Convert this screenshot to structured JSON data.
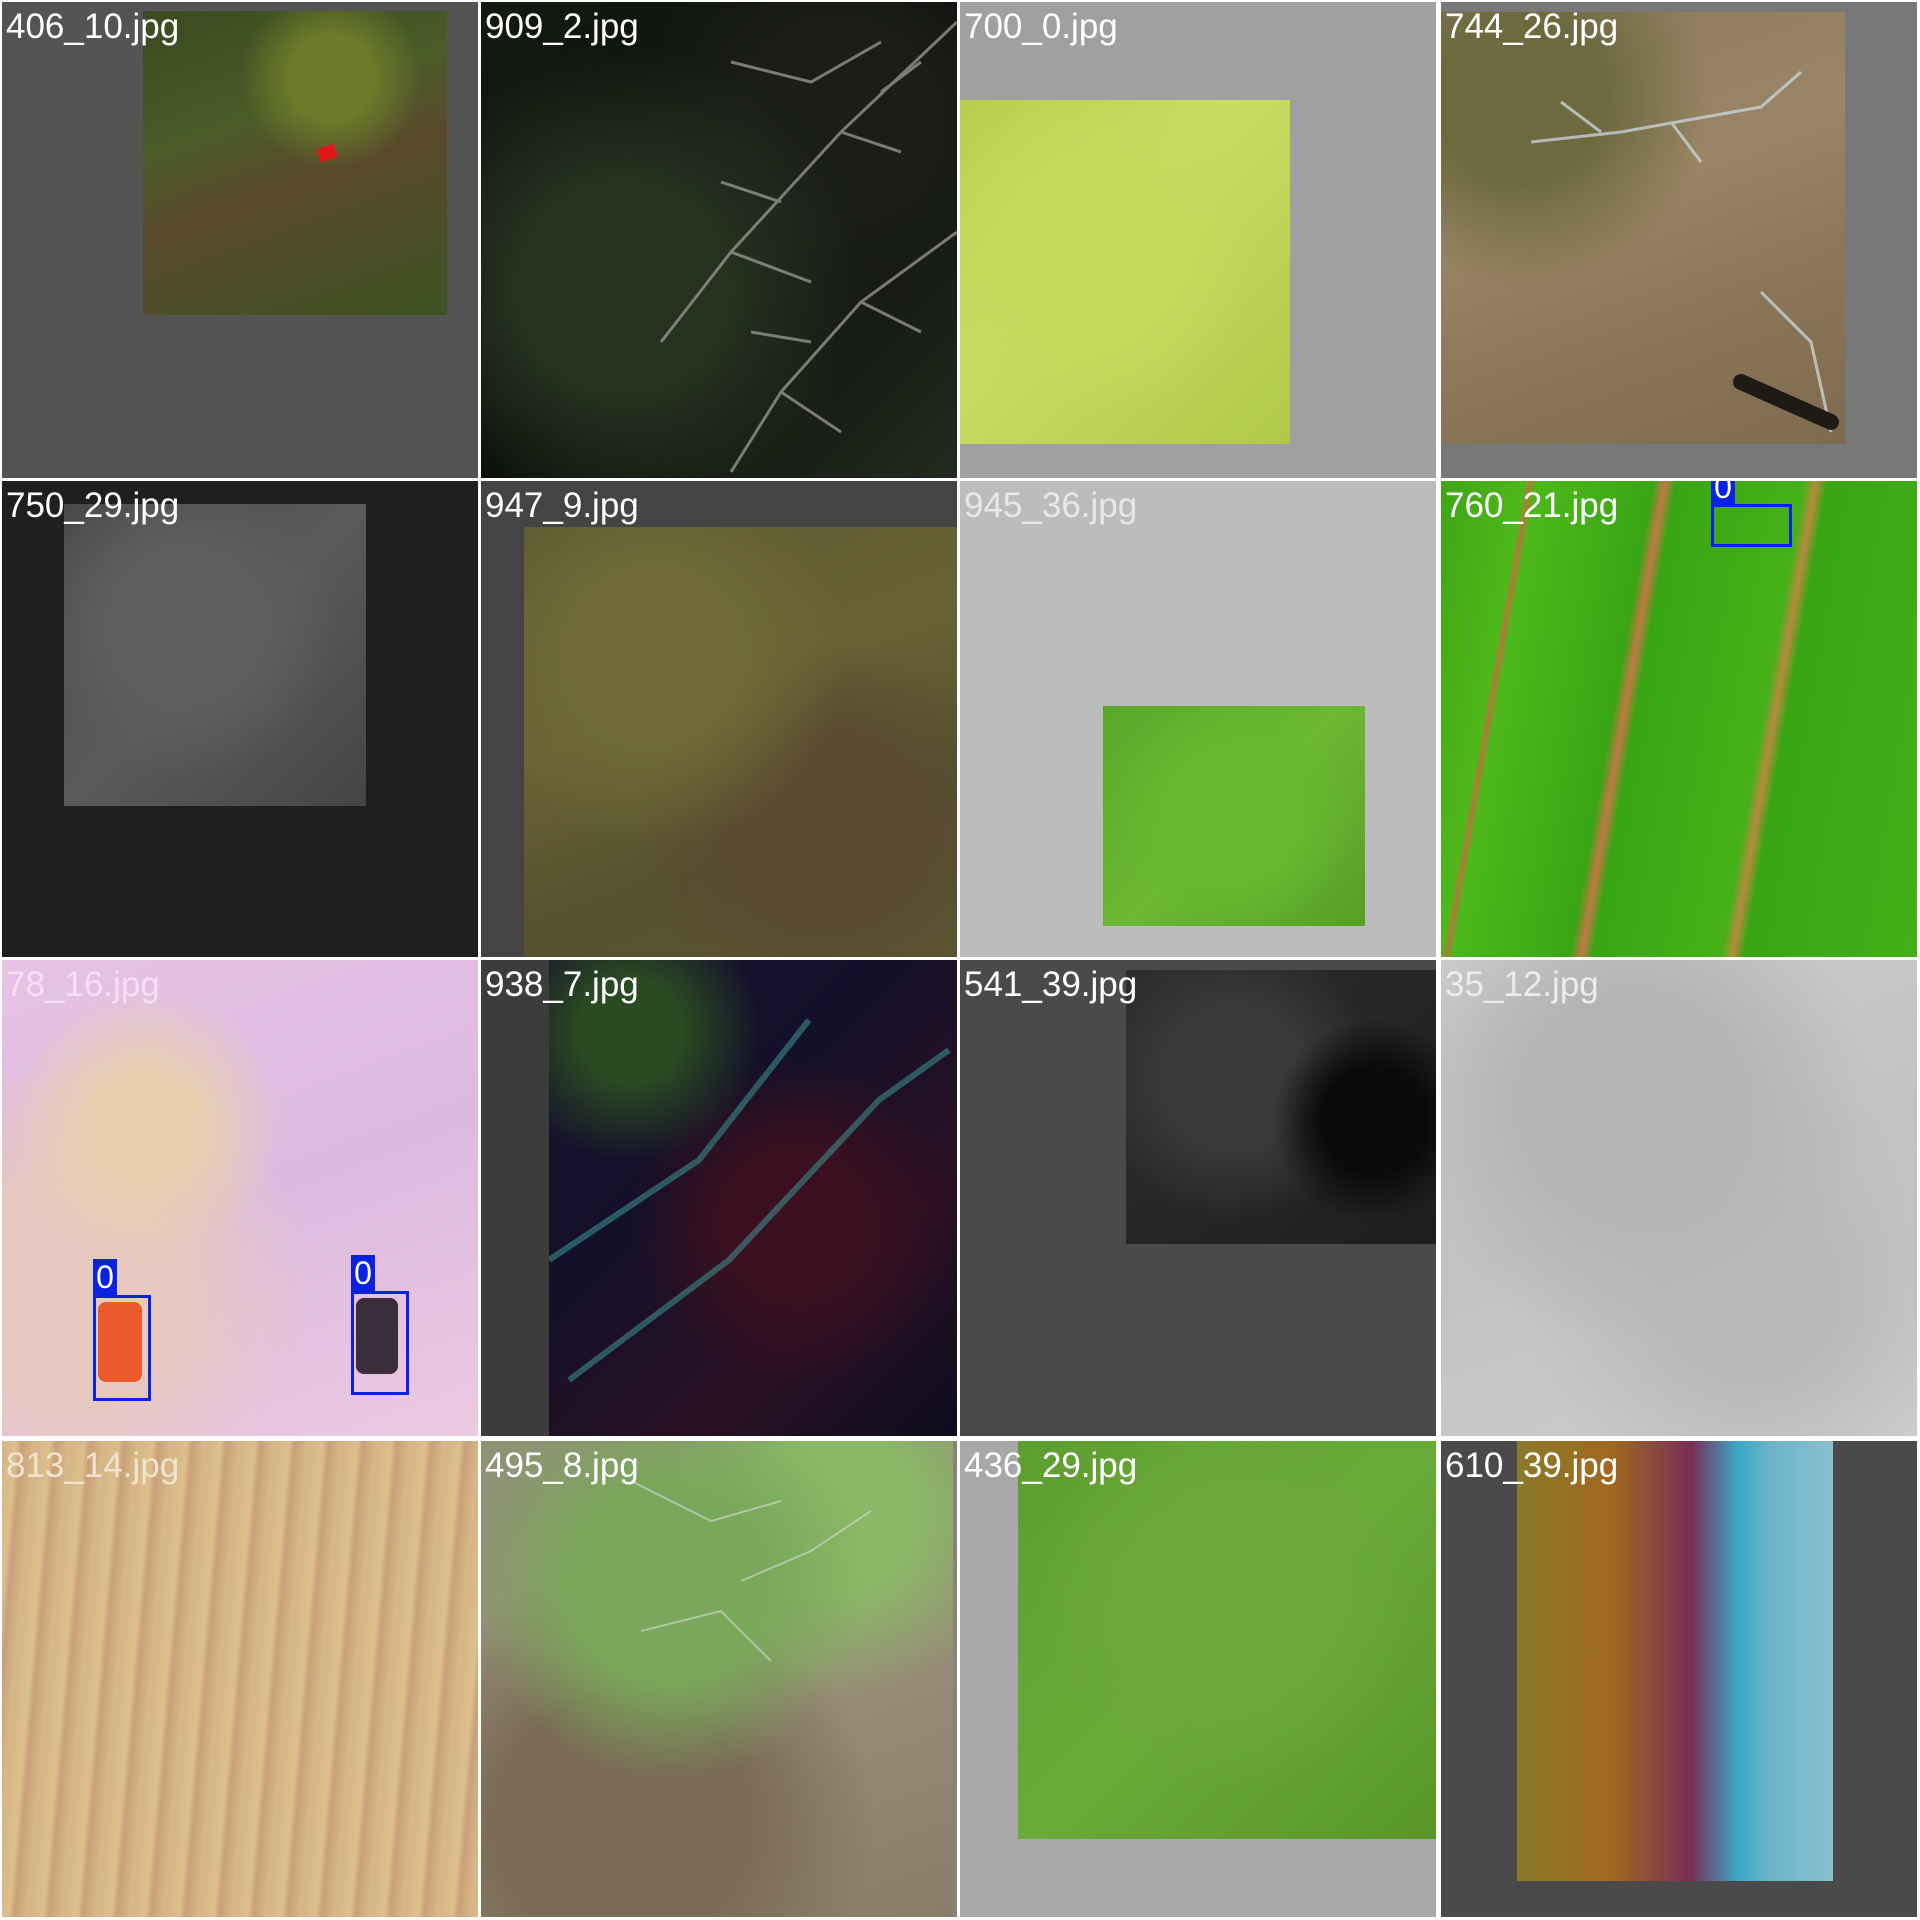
{
  "tiles": [
    {
      "filename": "406_10.jpg"
    },
    {
      "filename": "909_2.jpg"
    },
    {
      "filename": "700_0.jpg"
    },
    {
      "filename": "744_26.jpg"
    },
    {
      "filename": "750_29.jpg"
    },
    {
      "filename": "947_9.jpg"
    },
    {
      "filename": "945_36.jpg"
    },
    {
      "filename": "760_21.jpg",
      "detections": [
        {
          "label": "0"
        }
      ]
    },
    {
      "filename": "78_16.jpg",
      "detections": [
        {
          "label": "0"
        },
        {
          "label": "0"
        }
      ]
    },
    {
      "filename": "938_7.jpg"
    },
    {
      "filename": "541_39.jpg"
    },
    {
      "filename": "35_12.jpg"
    },
    {
      "filename": "813_14.jpg"
    },
    {
      "filename": "495_8.jpg"
    },
    {
      "filename": "436_29.jpg"
    },
    {
      "filename": "610_39.jpg"
    }
  ],
  "colors": {
    "grid_background": "#ffffff",
    "detection_box": "#0b22e0",
    "filename_text": "#ffffff"
  }
}
